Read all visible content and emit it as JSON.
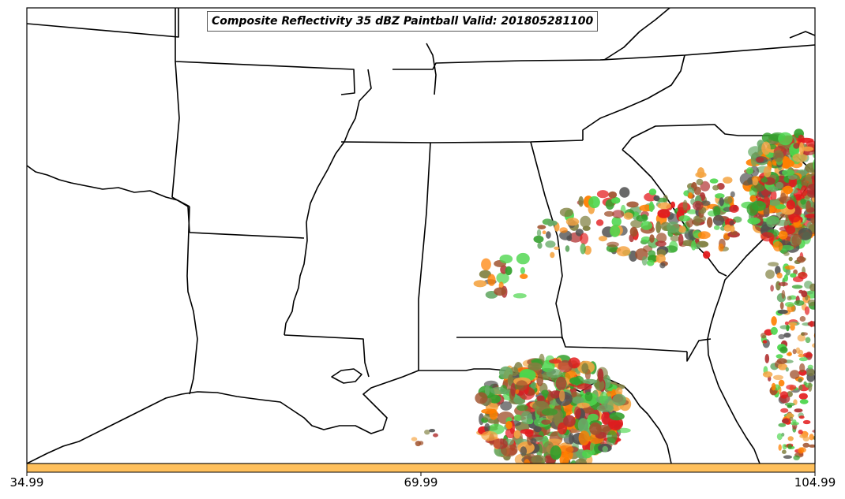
{
  "title": "Composite Reflectivity 35 dBZ Paintball Valid: 201805281100",
  "colorbar": {
    "ticks": [
      "34.99",
      "69.99",
      "104.99"
    ],
    "color": "#ffc05c"
  },
  "map": {
    "extent": "US Southeast / Gulf Coast",
    "features": [
      "state boundaries",
      "coastlines",
      "lakes"
    ]
  },
  "ensemble_colors": [
    "#e31a1c",
    "#ff7f00",
    "#33a02c",
    "#4dd64d",
    "#a0522d",
    "#808040",
    "#505050",
    "#f4a442",
    "#b03030",
    "#66aa66"
  ]
}
